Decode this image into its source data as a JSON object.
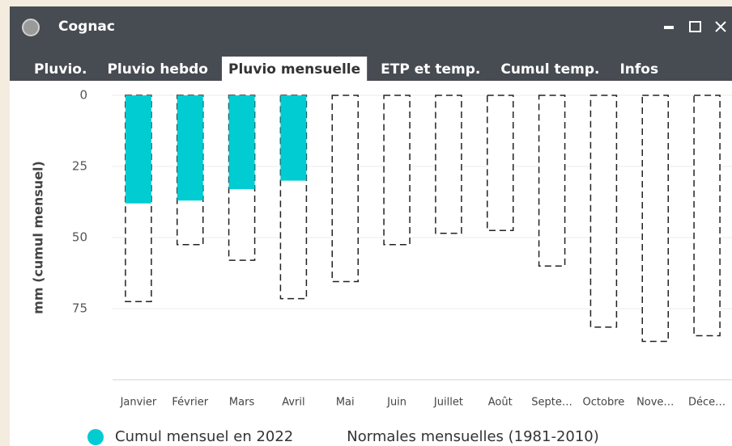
{
  "window": {
    "title": "Cognac"
  },
  "tabs": [
    "Pluvio.",
    "Pluvio hebdo",
    "Pluvio mensuelle",
    "ETP et temp.",
    "Cumul temp.",
    "Infos"
  ],
  "active_tab": 2,
  "chart_data": {
    "type": "bar",
    "y_label": "mm (cumul mensuel)",
    "categories": [
      "Janvier",
      "Février",
      "Mars",
      "Avril",
      "Mai",
      "Juin",
      "Juillet",
      "Août",
      "Septe…",
      "Octobre",
      "Nove…",
      "Déce…"
    ],
    "series": [
      {
        "name": "Cumul mensuel en 2022",
        "color": "#00ccd1",
        "values": [
          38,
          37,
          33,
          30,
          null,
          null,
          null,
          null,
          null,
          null,
          null,
          null
        ]
      },
      {
        "name": "Normales mensuelles (1981-2010)",
        "color": "#222222",
        "style": "dashed",
        "values": [
          72.5,
          52.5,
          58,
          71.5,
          65.5,
          52.5,
          48.5,
          47.5,
          60,
          81.5,
          86.5,
          84.5
        ]
      }
    ],
    "ylim": [
      0,
      100
    ],
    "yticks": [
      0,
      25,
      50,
      75
    ],
    "y_inverted": true,
    "grid": true
  }
}
